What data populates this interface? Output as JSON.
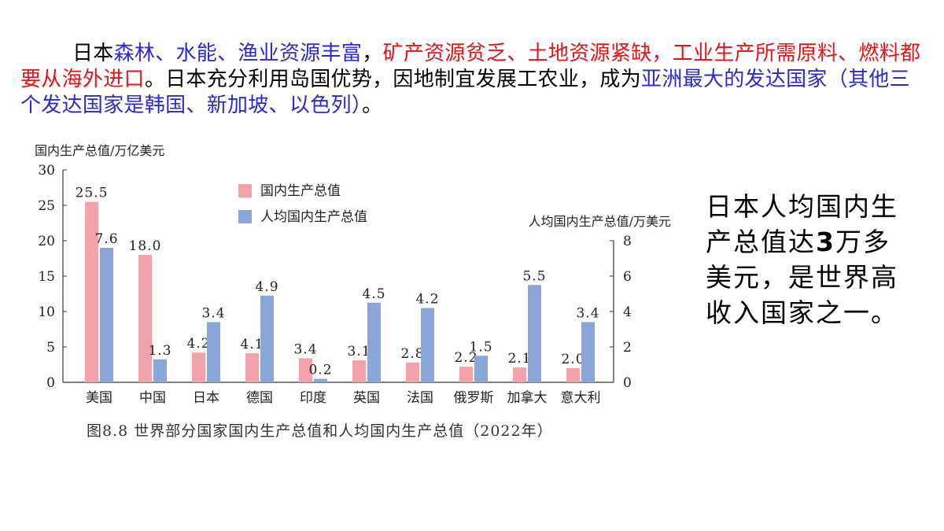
{
  "paragraph": {
    "p1": "日本",
    "p2": "森林、水能、渔业资源丰富",
    "p3": "，",
    "p4": "矿产资源贫乏、土地资源紧缺，工业生产所需原料、燃料都要从海外进口",
    "p5": "。日本充分利用岛国优势，因地制宜发展工农业，成为",
    "p6": "亚洲最大的发达国家（其他三个发达国家是韩国、新加坡、以色列）",
    "p7": "。"
  },
  "callout": {
    "c1": "日本人均国内生产总值达",
    "c2": "3",
    "c3": "万多美元，是世界高收入国家之一。"
  },
  "chart_data": {
    "type": "bar",
    "title": "图8.8 世界部分国家国内生产总值和人均国内生产总值（2022年）",
    "categories": [
      "美国",
      "中国",
      "日本",
      "德国",
      "印度",
      "英国",
      "法国",
      "俄罗斯",
      "加拿大",
      "意大利"
    ],
    "series": [
      {
        "name": "国内生产总值",
        "axis": "left",
        "color": "#f2a2ab",
        "values": [
          25.5,
          18.0,
          4.2,
          4.1,
          3.4,
          3.1,
          2.8,
          2.2,
          2.1,
          2.0
        ],
        "labels": [
          "25.5",
          "18.0",
          "4.2",
          "4.1",
          "3.4",
          "3.1",
          "2.8",
          "2.2",
          "2.1",
          "2.0"
        ]
      },
      {
        "name": "人均国内生产总值",
        "axis": "right",
        "color": "#8aa5d8",
        "values": [
          7.6,
          1.3,
          3.4,
          4.9,
          0.2,
          4.5,
          4.2,
          1.5,
          5.5,
          3.4
        ],
        "labels": [
          "7.6",
          "1.3",
          "3.4",
          "4.9",
          "0.2",
          "4.5",
          "4.2",
          "1.5",
          "5.5",
          "3.4"
        ]
      }
    ],
    "ylabel_left": "国内生产总值/万亿美元",
    "ylabel_right": "人均国内生产总值/万美元",
    "ylim_left": [
      0,
      30
    ],
    "ylim_right": [
      0,
      8
    ],
    "yticks_left": [
      "0",
      "5",
      "10",
      "15",
      "20",
      "25",
      "30"
    ],
    "yticks_right": [
      "0",
      "2",
      "4",
      "6",
      "8"
    ],
    "legend_position": "top-center",
    "grid": false
  }
}
